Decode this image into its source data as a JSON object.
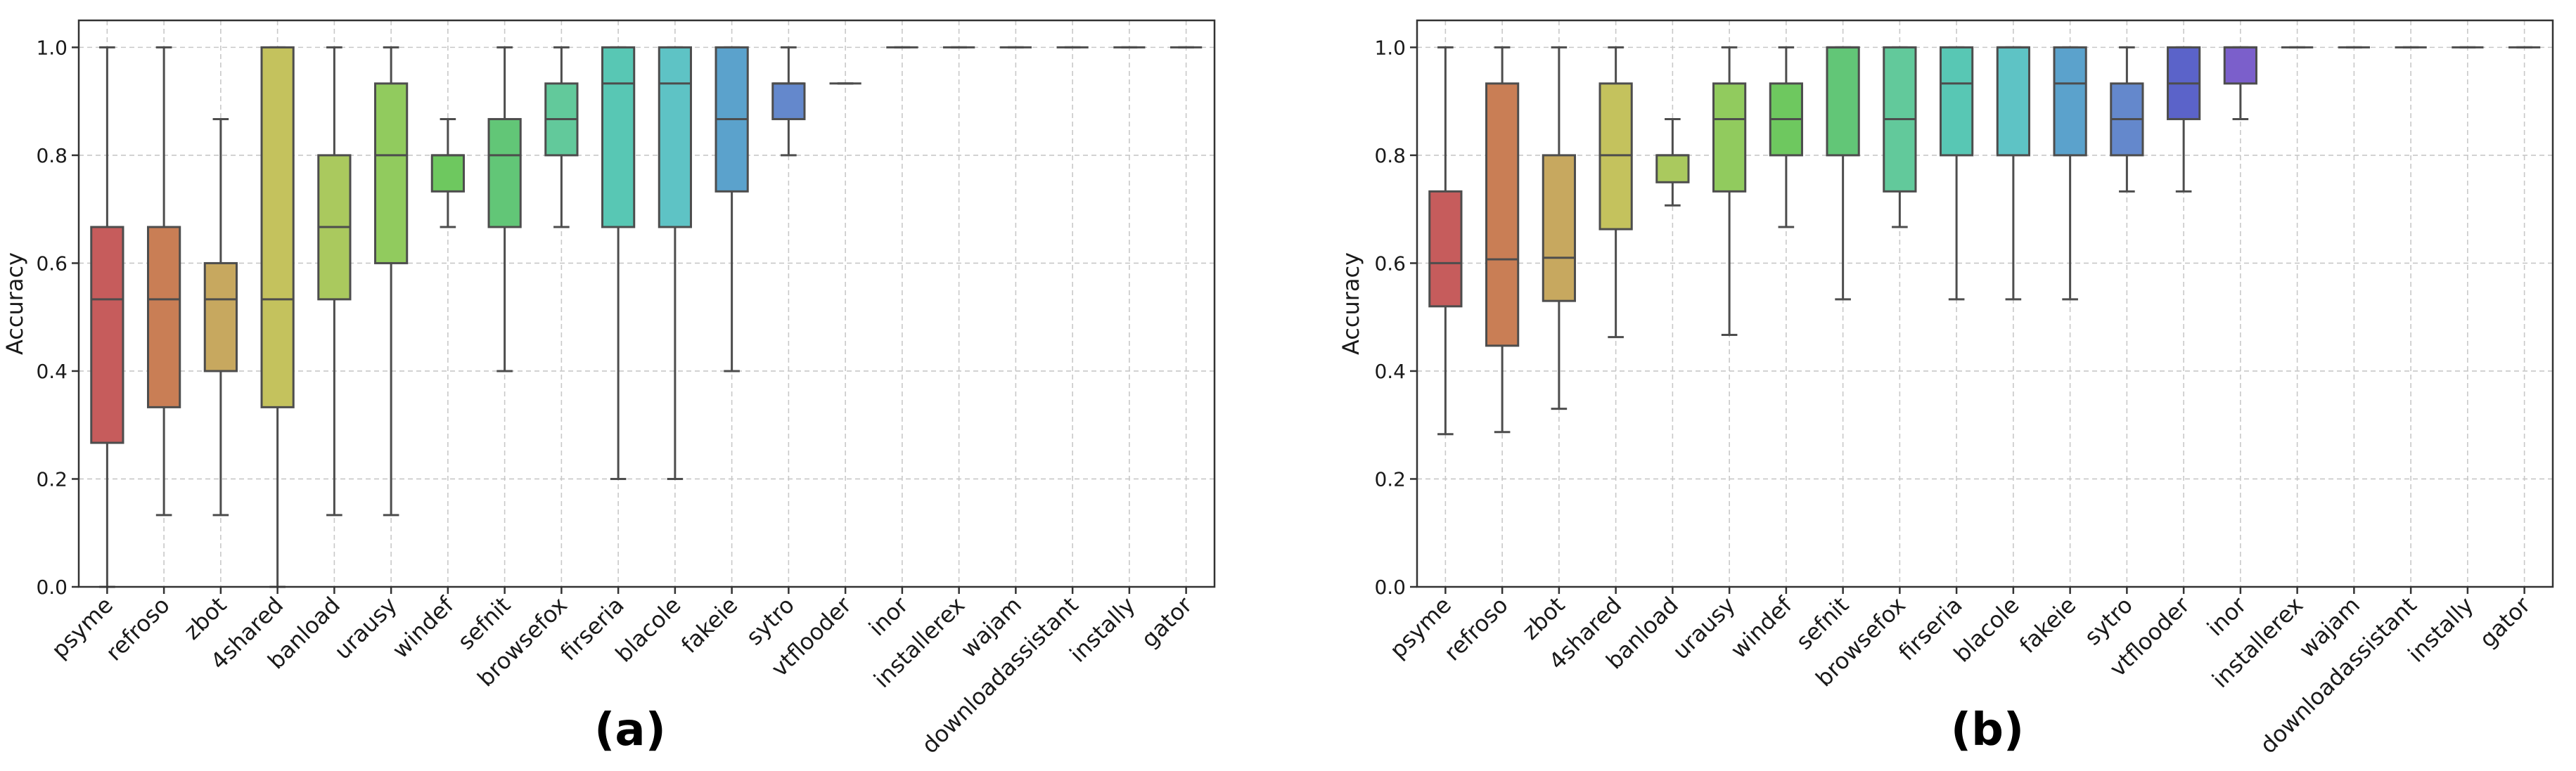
{
  "chart_data": [
    {
      "type": "box",
      "panel_label": "(a)",
      "title": "",
      "xlabel": "",
      "ylabel": "Accuracy",
      "ylim": [
        0,
        1.05
      ],
      "yticks": [
        "0.0",
        "0.2",
        "0.4",
        "0.6",
        "0.8",
        "1.0"
      ],
      "grid": true,
      "categories": [
        "psyme",
        "refroso",
        "zbot",
        "4shared",
        "banload",
        "urausy",
        "windef",
        "sefnit",
        "browsefox",
        "firseria",
        "blacole",
        "fakeie",
        "sytro",
        "vtflooder",
        "inor",
        "installerex",
        "wajam",
        "downloadassistant",
        "instally",
        "gator"
      ],
      "boxes": [
        {
          "min": 0.0,
          "q1": 0.267,
          "median": 0.533,
          "q3": 0.667,
          "max": 1.0
        },
        {
          "min": 0.133,
          "q1": 0.333,
          "median": 0.533,
          "q3": 0.667,
          "max": 1.0
        },
        {
          "min": 0.133,
          "q1": 0.4,
          "median": 0.533,
          "q3": 0.6,
          "max": 0.867
        },
        {
          "min": 0.0,
          "q1": 0.333,
          "median": 0.533,
          "q3": 1.0,
          "max": 1.0
        },
        {
          "min": 0.133,
          "q1": 0.533,
          "median": 0.667,
          "q3": 0.8,
          "max": 1.0
        },
        {
          "min": 0.133,
          "q1": 0.6,
          "median": 0.8,
          "q3": 0.933,
          "max": 1.0
        },
        {
          "min": 0.667,
          "q1": 0.733,
          "median": 0.8,
          "q3": 0.8,
          "max": 0.867
        },
        {
          "min": 0.4,
          "q1": 0.667,
          "median": 0.8,
          "q3": 0.867,
          "max": 1.0
        },
        {
          "min": 0.667,
          "q1": 0.8,
          "median": 0.867,
          "q3": 0.933,
          "max": 1.0
        },
        {
          "min": 0.2,
          "q1": 0.667,
          "median": 0.933,
          "q3": 1.0,
          "max": 1.0
        },
        {
          "min": 0.2,
          "q1": 0.667,
          "median": 0.933,
          "q3": 1.0,
          "max": 1.0
        },
        {
          "min": 0.4,
          "q1": 0.733,
          "median": 0.867,
          "q3": 1.0,
          "max": 1.0
        },
        {
          "min": 0.8,
          "q1": 0.867,
          "median": 0.933,
          "q3": 0.933,
          "max": 1.0
        },
        {
          "min": 0.933,
          "q1": 0.933,
          "median": 0.933,
          "q3": 0.933,
          "max": 0.933
        },
        {
          "min": 1.0,
          "q1": 1.0,
          "median": 1.0,
          "q3": 1.0,
          "max": 1.0
        },
        {
          "min": 1.0,
          "q1": 1.0,
          "median": 1.0,
          "q3": 1.0,
          "max": 1.0
        },
        {
          "min": 1.0,
          "q1": 1.0,
          "median": 1.0,
          "q3": 1.0,
          "max": 1.0
        },
        {
          "min": 1.0,
          "q1": 1.0,
          "median": 1.0,
          "q3": 1.0,
          "max": 1.0
        },
        {
          "min": 1.0,
          "q1": 1.0,
          "median": 1.0,
          "q3": 1.0,
          "max": 1.0
        },
        {
          "min": 1.0,
          "q1": 1.0,
          "median": 1.0,
          "q3": 1.0,
          "max": 1.0
        }
      ]
    },
    {
      "type": "box",
      "panel_label": "(b)",
      "title": "",
      "xlabel": "",
      "ylabel": "Accuracy",
      "ylim": [
        0,
        1.05
      ],
      "yticks": [
        "0.0",
        "0.2",
        "0.4",
        "0.6",
        "0.8",
        "1.0"
      ],
      "grid": true,
      "categories": [
        "psyme",
        "refroso",
        "zbot",
        "4shared",
        "banload",
        "urausy",
        "windef",
        "sefnit",
        "browsefox",
        "firseria",
        "blacole",
        "fakeie",
        "sytro",
        "vtflooder",
        "inor",
        "installerex",
        "wajam",
        "downloadassistant",
        "instally",
        "gator"
      ],
      "boxes": [
        {
          "min": 0.283,
          "q1": 0.52,
          "median": 0.6,
          "q3": 0.733,
          "max": 1.0
        },
        {
          "min": 0.287,
          "q1": 0.447,
          "median": 0.607,
          "q3": 0.933,
          "max": 1.0
        },
        {
          "min": 0.33,
          "q1": 0.53,
          "median": 0.61,
          "q3": 0.8,
          "max": 1.0
        },
        {
          "min": 0.463,
          "q1": 0.663,
          "median": 0.8,
          "q3": 0.933,
          "max": 1.0
        },
        {
          "min": 0.707,
          "q1": 0.75,
          "median": 0.8,
          "q3": 0.8,
          "max": 0.867
        },
        {
          "min": 0.467,
          "q1": 0.733,
          "median": 0.867,
          "q3": 0.933,
          "max": 1.0
        },
        {
          "min": 0.667,
          "q1": 0.8,
          "median": 0.867,
          "q3": 0.933,
          "max": 1.0
        },
        {
          "min": 0.533,
          "q1": 0.8,
          "median": 1.0,
          "q3": 1.0,
          "max": 1.0
        },
        {
          "min": 0.667,
          "q1": 0.733,
          "median": 0.867,
          "q3": 1.0,
          "max": 1.0
        },
        {
          "min": 0.533,
          "q1": 0.8,
          "median": 0.933,
          "q3": 1.0,
          "max": 1.0
        },
        {
          "min": 0.533,
          "q1": 0.8,
          "median": 1.0,
          "q3": 1.0,
          "max": 1.0
        },
        {
          "min": 0.533,
          "q1": 0.8,
          "median": 0.933,
          "q3": 1.0,
          "max": 1.0
        },
        {
          "min": 0.733,
          "q1": 0.8,
          "median": 0.867,
          "q3": 0.933,
          "max": 1.0
        },
        {
          "min": 0.733,
          "q1": 0.867,
          "median": 0.933,
          "q3": 1.0,
          "max": 1.0
        },
        {
          "min": 0.867,
          "q1": 0.933,
          "median": 1.0,
          "q3": 1.0,
          "max": 1.0
        },
        {
          "min": 1.0,
          "q1": 1.0,
          "median": 1.0,
          "q3": 1.0,
          "max": 1.0
        },
        {
          "min": 1.0,
          "q1": 1.0,
          "median": 1.0,
          "q3": 1.0,
          "max": 1.0
        },
        {
          "min": 1.0,
          "q1": 1.0,
          "median": 1.0,
          "q3": 1.0,
          "max": 1.0
        },
        {
          "min": 1.0,
          "q1": 1.0,
          "median": 1.0,
          "q3": 1.0,
          "max": 1.0
        },
        {
          "min": 1.0,
          "q1": 1.0,
          "median": 1.0,
          "q3": 1.0,
          "max": 1.0
        }
      ]
    }
  ],
  "palette": [
    "#c65c5c",
    "#c97e55",
    "#c7a85f",
    "#c4c25d",
    "#aac95e",
    "#91cb5e",
    "#6ec85f",
    "#62c677",
    "#62c99b",
    "#58c7b4",
    "#5ec3c5",
    "#5ba2cc",
    "#6488cc",
    "#5b63c9",
    "#7b5fcb"
  ],
  "colors": {
    "box_edge": "#4d4d4d",
    "grid": "#c8c8c8",
    "frame": "#333333"
  }
}
